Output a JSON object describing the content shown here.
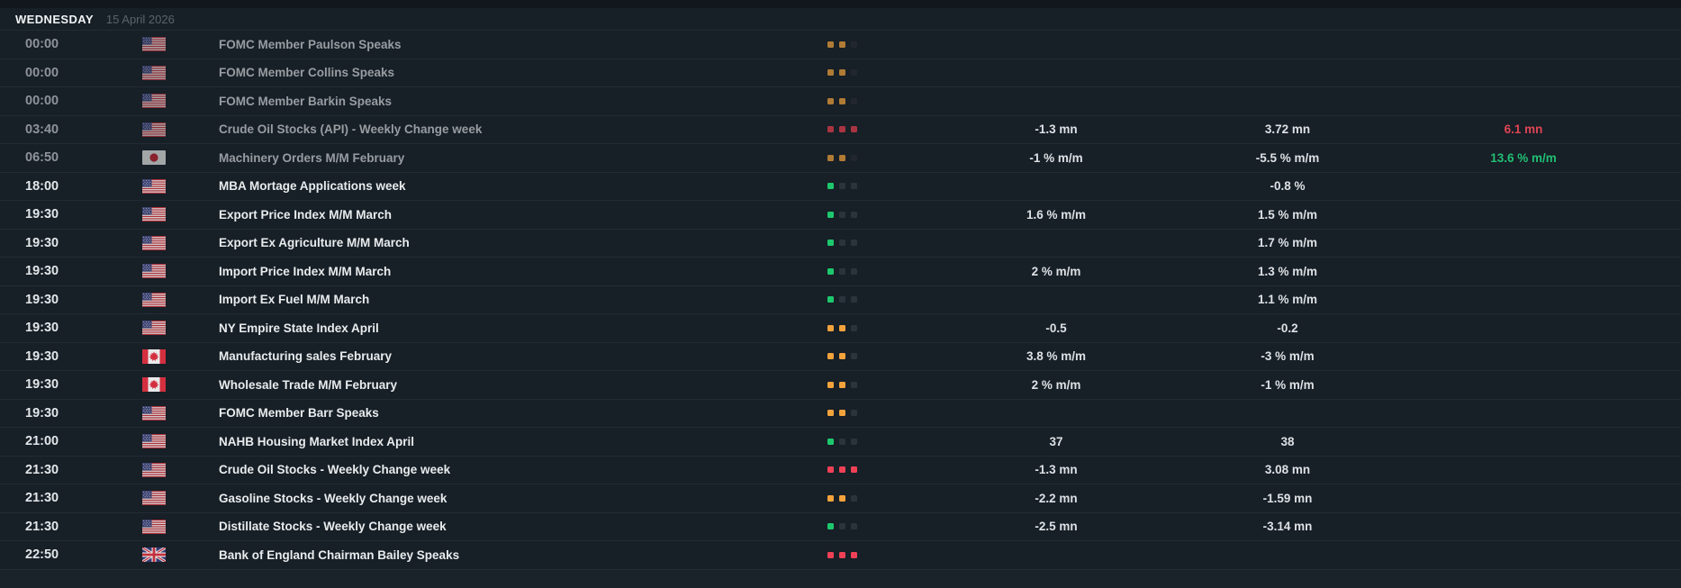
{
  "header": {
    "day": "WEDNESDAY",
    "date": "15 April 2026"
  },
  "colors": {
    "background": "#171f27",
    "separator": "#232c35",
    "importance_low": "#1dc86d",
    "importance_medium": "#f2a33c",
    "importance_high": "#ef4155",
    "value_positive": "#21bf73",
    "value_negative": "#e04553"
  },
  "rows": [
    {
      "time": "00:00",
      "country": "us",
      "event": "FOMC Member Paulson Speaks",
      "dots": [
        "orange",
        "orange",
        "off"
      ],
      "values": [
        "",
        "",
        ""
      ],
      "value_colors": [
        "",
        "",
        ""
      ],
      "past": true
    },
    {
      "time": "00:00",
      "country": "us",
      "event": "FOMC Member Collins Speaks",
      "dots": [
        "orange",
        "orange",
        "off"
      ],
      "values": [
        "",
        "",
        ""
      ],
      "value_colors": [
        "",
        "",
        ""
      ],
      "past": true
    },
    {
      "time": "00:00",
      "country": "us",
      "event": "FOMC Member Barkin Speaks",
      "dots": [
        "orange",
        "orange",
        "off"
      ],
      "values": [
        "",
        "",
        ""
      ],
      "value_colors": [
        "",
        "",
        ""
      ],
      "past": true
    },
    {
      "time": "03:40",
      "country": "us",
      "event": "Crude Oil Stocks (API) - Weekly Change week",
      "dots": [
        "red",
        "red",
        "red"
      ],
      "values": [
        "-1.3 mn",
        "3.72 mn",
        "6.1 mn"
      ],
      "value_colors": [
        "",
        "",
        "red"
      ],
      "past": true
    },
    {
      "time": "06:50",
      "country": "jp",
      "event": "Machinery Orders M/M February",
      "dots": [
        "orange",
        "orange",
        "off"
      ],
      "values": [
        "-1 % m/m",
        "-5.5 % m/m",
        "13.6 % m/m"
      ],
      "value_colors": [
        "",
        "",
        "green"
      ],
      "past": true
    },
    {
      "time": "18:00",
      "country": "us",
      "event": "MBA Mortage Applications week",
      "dots": [
        "green",
        "off",
        "off"
      ],
      "values": [
        "",
        "-0.8 %",
        ""
      ],
      "value_colors": [
        "",
        "",
        ""
      ],
      "past": false
    },
    {
      "time": "19:30",
      "country": "us",
      "event": "Export Price Index M/M March",
      "dots": [
        "green",
        "off",
        "off"
      ],
      "values": [
        "1.6 % m/m",
        "1.5 % m/m",
        ""
      ],
      "value_colors": [
        "",
        "",
        ""
      ],
      "past": false
    },
    {
      "time": "19:30",
      "country": "us",
      "event": "Export Ex Agriculture M/M March",
      "dots": [
        "green",
        "off",
        "off"
      ],
      "values": [
        "",
        "1.7 % m/m",
        ""
      ],
      "value_colors": [
        "",
        "",
        ""
      ],
      "past": false
    },
    {
      "time": "19:30",
      "country": "us",
      "event": "Import Price Index M/M March",
      "dots": [
        "green",
        "off",
        "off"
      ],
      "values": [
        "2 % m/m",
        "1.3 % m/m",
        ""
      ],
      "value_colors": [
        "",
        "",
        ""
      ],
      "past": false
    },
    {
      "time": "19:30",
      "country": "us",
      "event": "Import Ex Fuel M/M March",
      "dots": [
        "green",
        "off",
        "off"
      ],
      "values": [
        "",
        "1.1 % m/m",
        ""
      ],
      "value_colors": [
        "",
        "",
        ""
      ],
      "past": false
    },
    {
      "time": "19:30",
      "country": "us",
      "event": "NY Empire State Index April",
      "dots": [
        "orange",
        "orange",
        "off"
      ],
      "values": [
        "-0.5",
        "-0.2",
        ""
      ],
      "value_colors": [
        "",
        "",
        ""
      ],
      "past": false
    },
    {
      "time": "19:30",
      "country": "ca",
      "event": "Manufacturing sales February",
      "dots": [
        "orange",
        "orange",
        "off"
      ],
      "values": [
        "3.8 % m/m",
        "-3 % m/m",
        ""
      ],
      "value_colors": [
        "",
        "",
        ""
      ],
      "past": false
    },
    {
      "time": "19:30",
      "country": "ca",
      "event": "Wholesale Trade M/M February",
      "dots": [
        "orange",
        "orange",
        "off"
      ],
      "values": [
        "2 % m/m",
        "-1 % m/m",
        ""
      ],
      "value_colors": [
        "",
        "",
        ""
      ],
      "past": false
    },
    {
      "time": "19:30",
      "country": "us",
      "event": "FOMC Member Barr Speaks",
      "dots": [
        "orange",
        "orange",
        "off"
      ],
      "values": [
        "",
        "",
        ""
      ],
      "value_colors": [
        "",
        "",
        ""
      ],
      "past": false
    },
    {
      "time": "21:00",
      "country": "us",
      "event": "NAHB Housing Market Index April",
      "dots": [
        "green",
        "off",
        "off"
      ],
      "values": [
        "37",
        "38",
        ""
      ],
      "value_colors": [
        "",
        "",
        ""
      ],
      "past": false
    },
    {
      "time": "21:30",
      "country": "us",
      "event": "Crude Oil Stocks - Weekly Change week",
      "dots": [
        "red",
        "red",
        "red"
      ],
      "values": [
        "-1.3 mn",
        "3.08 mn",
        ""
      ],
      "value_colors": [
        "",
        "",
        ""
      ],
      "past": false
    },
    {
      "time": "21:30",
      "country": "us",
      "event": "Gasoline Stocks - Weekly Change week",
      "dots": [
        "orange",
        "orange",
        "off"
      ],
      "values": [
        "-2.2 mn",
        "-1.59 mn",
        ""
      ],
      "value_colors": [
        "",
        "",
        ""
      ],
      "past": false
    },
    {
      "time": "21:30",
      "country": "us",
      "event": "Distillate Stocks - Weekly Change week",
      "dots": [
        "green",
        "off",
        "off"
      ],
      "values": [
        "-2.5 mn",
        "-3.14 mn",
        ""
      ],
      "value_colors": [
        "",
        "",
        ""
      ],
      "past": false
    },
    {
      "time": "22:50",
      "country": "gb",
      "event": "Bank of England Chairman Bailey Speaks",
      "dots": [
        "red",
        "red",
        "red"
      ],
      "values": [
        "",
        "",
        ""
      ],
      "value_colors": [
        "",
        "",
        ""
      ],
      "past": false
    }
  ]
}
